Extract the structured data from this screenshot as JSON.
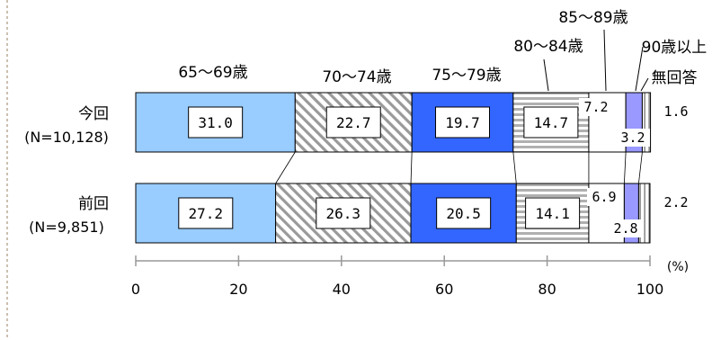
{
  "chart_data": {
    "type": "bar",
    "orientation": "horizontal",
    "stacked": true,
    "unit_label": "(%)",
    "xlim": [
      0,
      100
    ],
    "xticks": [
      "0",
      "20",
      "40",
      "60",
      "80",
      "100"
    ],
    "rows": [
      {
        "label_line1": "今回",
        "label_line2": "(N=10,128)"
      },
      {
        "label_line1": "前回",
        "label_line2": "(N=9,851)"
      }
    ],
    "series": [
      {
        "name": "65～69歳",
        "values": [
          31.0,
          27.2
        ],
        "labels": [
          "31.0",
          "27.2"
        ],
        "color": "#99ccff",
        "pattern": "solid"
      },
      {
        "name": "70～74歳",
        "values": [
          22.7,
          26.3
        ],
        "labels": [
          "22.7",
          "26.3"
        ],
        "color": "#c0c0c0",
        "pattern": "diagonal"
      },
      {
        "name": "75～79歳",
        "values": [
          19.7,
          20.5
        ],
        "labels": [
          "19.7",
          "20.5"
        ],
        "color": "#3366ff",
        "pattern": "solid"
      },
      {
        "name": "80～84歳",
        "values": [
          14.7,
          14.1
        ],
        "labels": [
          "14.7",
          "14.1"
        ],
        "color": "#b0b0b0",
        "pattern": "horizontal"
      },
      {
        "name": "85～89歳",
        "values": [
          7.2,
          6.9
        ],
        "labels": [
          "7.2",
          "6.9"
        ],
        "color": "#ffffff",
        "pattern": "solid"
      },
      {
        "name": "90歳以上",
        "values": [
          3.2,
          2.8
        ],
        "labels": [
          "3.2",
          "2.8"
        ],
        "color": "#9999ff",
        "pattern": "solid"
      },
      {
        "name": "無回答",
        "values": [
          1.6,
          2.2
        ],
        "labels": [
          "1.6",
          "2.2"
        ],
        "color": "#ffffff",
        "pattern": "vertical"
      }
    ]
  }
}
